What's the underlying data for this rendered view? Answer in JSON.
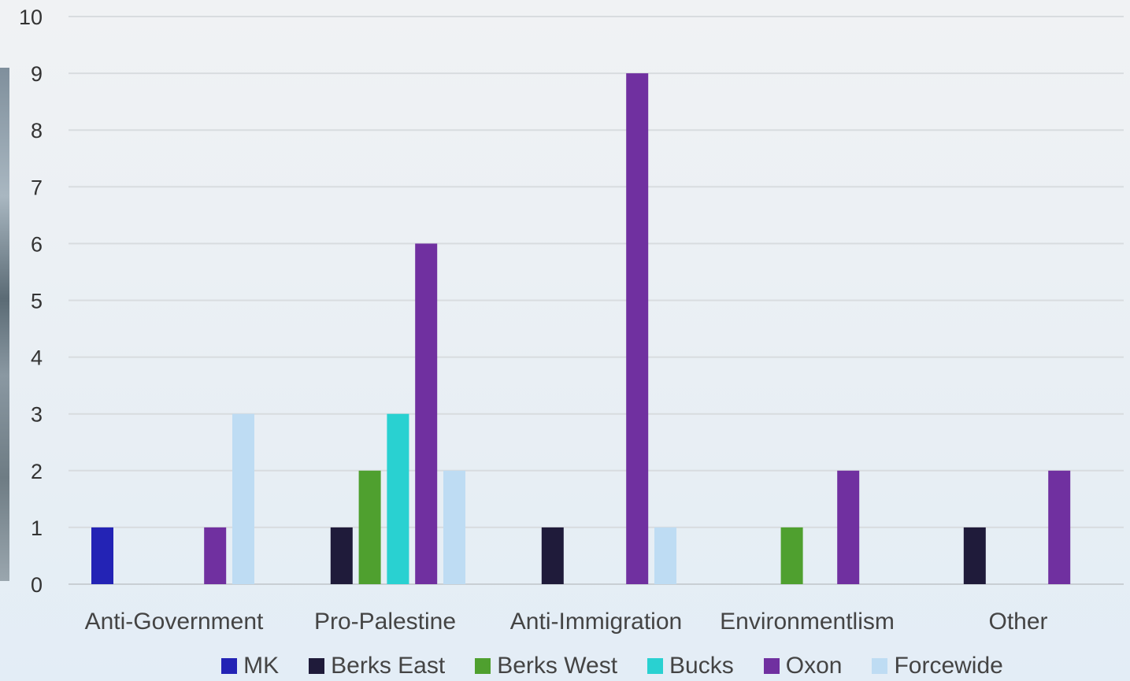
{
  "chart_data": {
    "type": "bar",
    "categories": [
      "Anti-Government",
      "Pro-Palestine",
      "Anti-Immigration",
      "Environmentlism",
      "Other"
    ],
    "series": [
      {
        "name": "MK",
        "color": "#2323b5",
        "values": [
          1,
          0,
          0,
          0,
          0
        ]
      },
      {
        "name": "Berks East",
        "color": "#1f1b3a",
        "values": [
          0,
          1,
          1,
          0,
          1
        ]
      },
      {
        "name": "Berks West",
        "color": "#4fa02f",
        "values": [
          0,
          2,
          0,
          1,
          0
        ]
      },
      {
        "name": "Bucks",
        "color": "#29d1d1",
        "values": [
          0,
          3,
          0,
          0,
          0
        ]
      },
      {
        "name": "Oxon",
        "color": "#7030a0",
        "values": [
          1,
          6,
          9,
          2,
          2
        ]
      },
      {
        "name": "Forcewide",
        "color": "#bedcf3",
        "values": [
          3,
          2,
          1,
          0,
          0
        ]
      }
    ],
    "ylim": [
      0,
      10
    ],
    "yticks": [
      "0",
      "1",
      "2",
      "3",
      "4",
      "5",
      "6",
      "7",
      "8",
      "9",
      "10"
    ],
    "grid": true,
    "legend_position": "bottom"
  }
}
